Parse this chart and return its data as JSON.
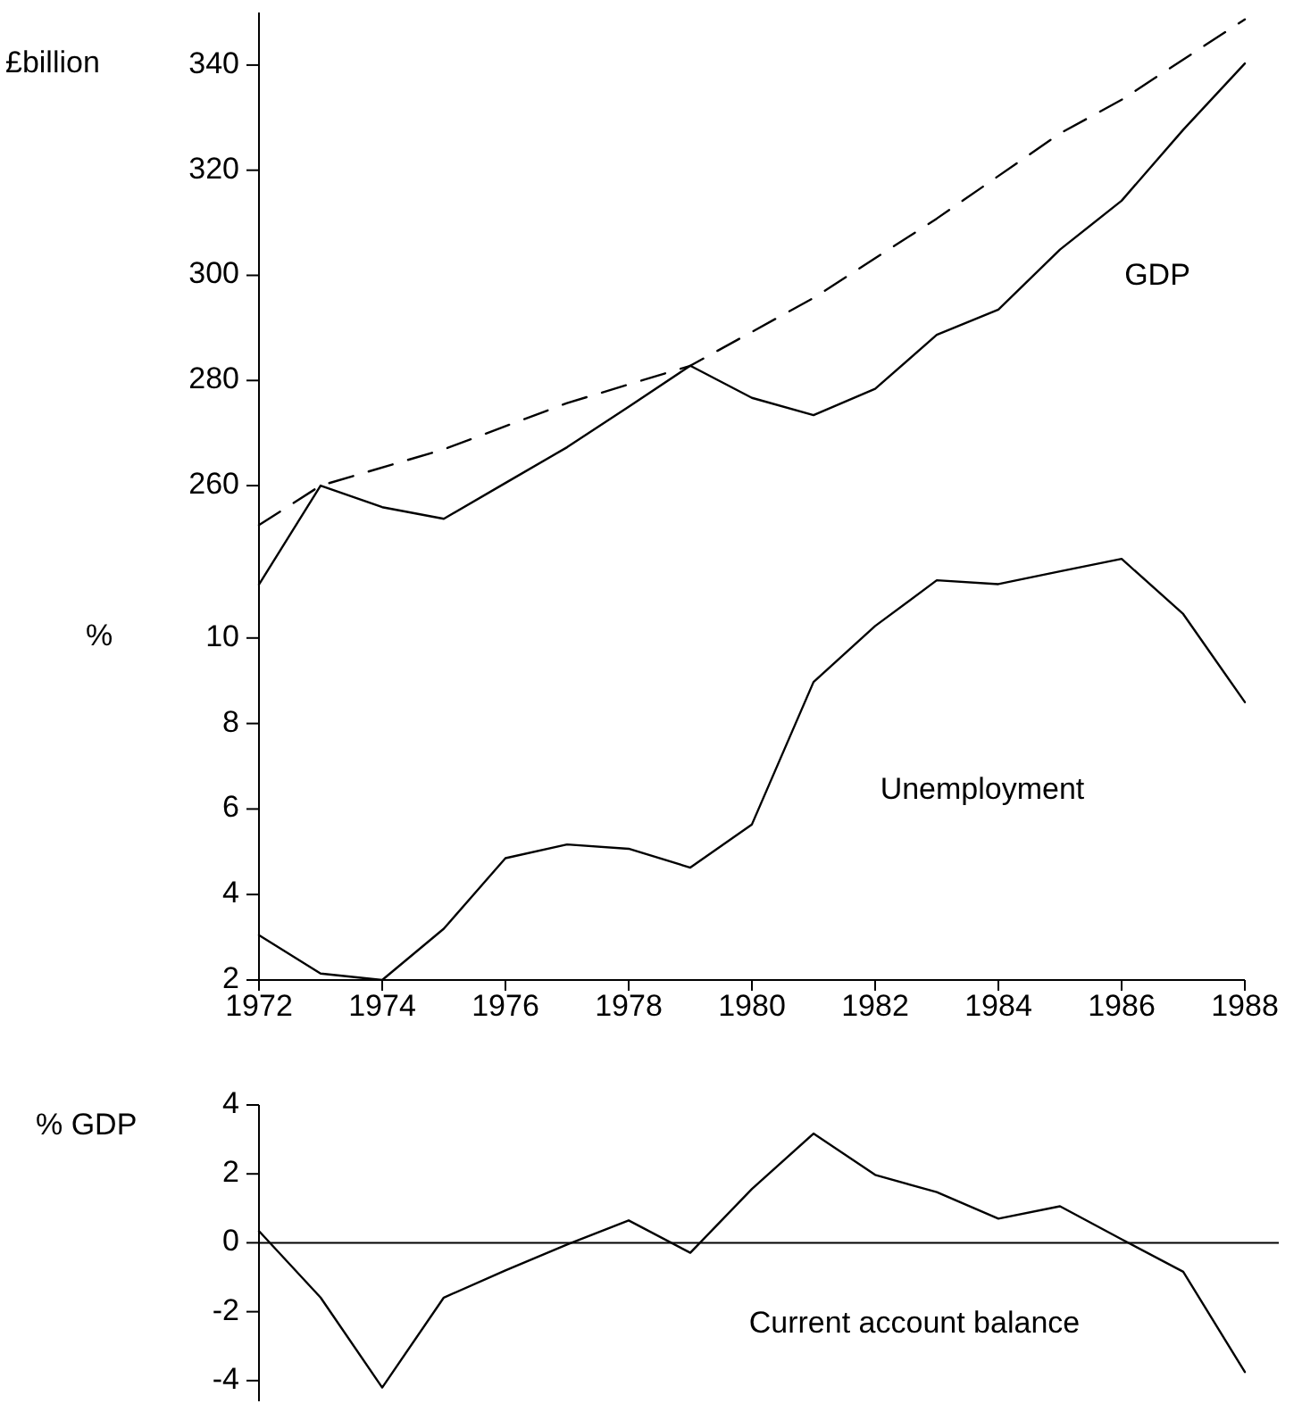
{
  "chart_data": [
    {
      "type": "line",
      "ylabel": "£billion",
      "x": [
        1972,
        1973,
        1974,
        1975,
        1976,
        1977,
        1978,
        1979,
        1980,
        1981,
        1982,
        1983,
        1984,
        1985,
        1986,
        1987,
        1988
      ],
      "xlim": [
        1972,
        1988
      ],
      "ylim": [
        241,
        350
      ],
      "yticks": [
        260,
        280,
        300,
        320,
        340
      ],
      "tick_labels": "y",
      "series": [
        {
          "name": "GDP",
          "color": "#000000",
          "line_style": "solid",
          "values": [
            241.2,
            260,
            255.9,
            253.7,
            260.5,
            267.3,
            275,
            282.8,
            276.7,
            273.4,
            278.4,
            288.7,
            293.5,
            304.9,
            314.2,
            327.7,
            340.3
          ]
        },
        {
          "color": "#000000",
          "line_style": "dashed",
          "x": [
            1972,
            1973,
            1975,
            1977,
            1979,
            1981,
            1983,
            1985,
            1986,
            1988
          ],
          "values": [
            252.5,
            260,
            266.9,
            275.7,
            282.8,
            295.7,
            310.8,
            327,
            333.4,
            348.7
          ]
        }
      ],
      "legend": false
    },
    {
      "type": "line",
      "ylabel": "%",
      "x": [
        1972,
        1973,
        1974,
        1975,
        1976,
        1977,
        1978,
        1979,
        1980,
        1981,
        1982,
        1983,
        1984,
        1985,
        1986,
        1987,
        1988
      ],
      "xlim": [
        1972,
        1988
      ],
      "ylim": [
        2,
        12
      ],
      "yticks": [
        2,
        4,
        6,
        8,
        10
      ],
      "xticks": [
        1972,
        1974,
        1976,
        1978,
        1980,
        1982,
        1984,
        1986,
        1988
      ],
      "series": [
        {
          "name": "Unemployment",
          "color": "#000000",
          "line_style": "solid",
          "values": [
            3.05,
            2.15,
            2.0,
            3.2,
            4.85,
            5.17,
            5.07,
            4.63,
            5.64,
            8.97,
            10.28,
            11.35,
            11.26,
            11.56,
            11.85,
            10.56,
            8.5
          ]
        }
      ],
      "legend": false
    },
    {
      "type": "line",
      "ylabel": "% GDP",
      "x": [
        1972,
        1973,
        1974,
        1975,
        1976,
        1977,
        1978,
        1979,
        1980,
        1981,
        1982,
        1983,
        1984,
        1985,
        1986,
        1987,
        1988
      ],
      "xlim": [
        1972,
        1988
      ],
      "ylim": [
        -4.6,
        4
      ],
      "yticks": [
        -4,
        -2,
        0,
        2,
        4
      ],
      "tick_labels": "y",
      "ref_lines": [
        {
          "axis": "y",
          "value": 0,
          "color": "#000000"
        }
      ],
      "series": [
        {
          "name": "Current account balance",
          "color": "#000000",
          "line_style": "solid",
          "values": [
            0.34,
            -1.59,
            -4.2,
            -1.59,
            -0.8,
            -0.05,
            0.65,
            -0.29,
            1.56,
            3.17,
            1.97,
            1.47,
            0.7,
            1.06,
            0.1,
            -0.84,
            -3.75
          ]
        }
      ],
      "legend": false
    }
  ]
}
